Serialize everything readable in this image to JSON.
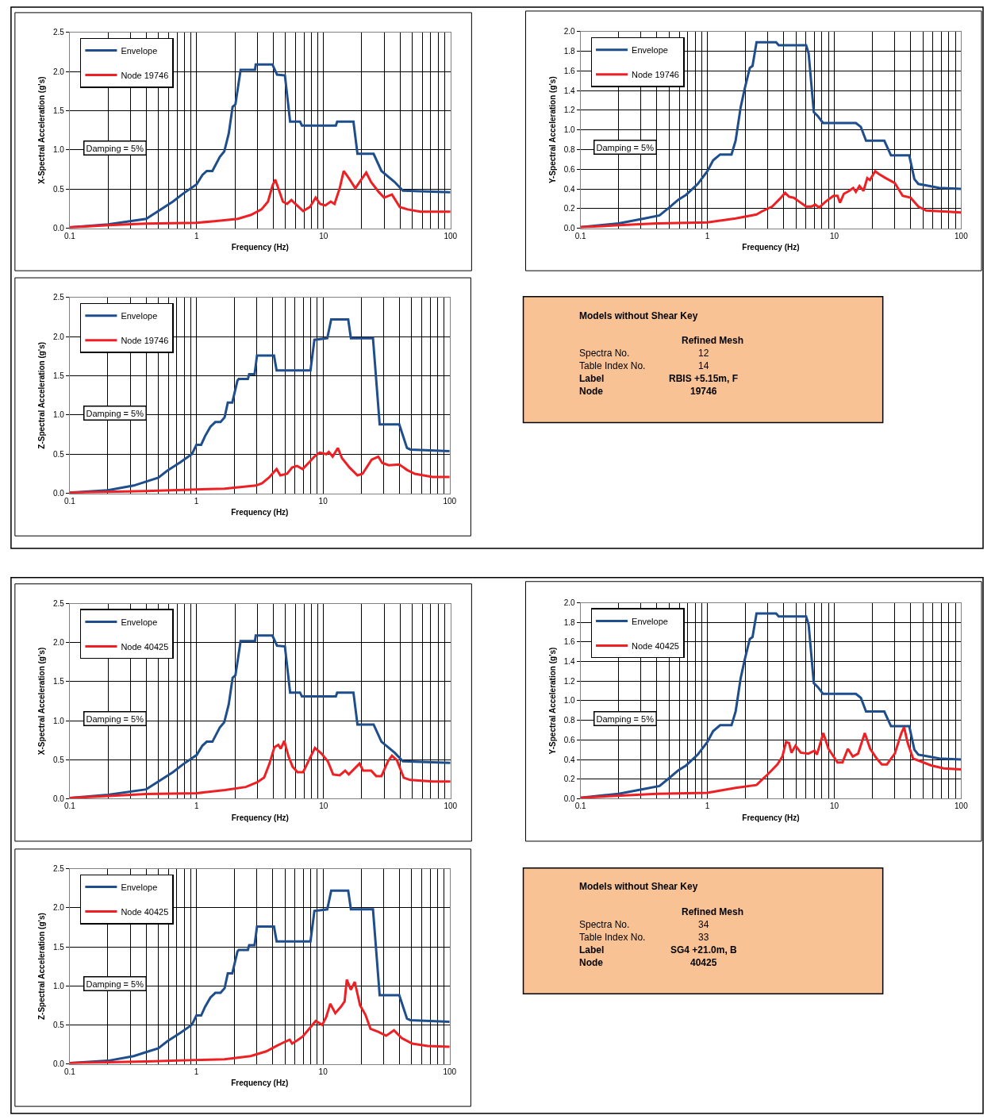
{
  "chart_data": [
    {
      "type": "line",
      "xlabel": "Frequency (Hz)",
      "ylabel": "X-Spectral Acceleration (g's)",
      "log": "x",
      "grid": true,
      "legend": "top left",
      "line_style": "solid",
      "annotations": [
        "Damping = 5%"
      ],
      "xlim": [
        0.1,
        100
      ],
      "xticks": [
        0.1,
        1,
        10,
        100
      ],
      "ylim": [
        0,
        2.5
      ],
      "yticks": [
        {
          "value": 0,
          "label": "0.0"
        },
        {
          "value": 0.5,
          "label": "0.5"
        },
        {
          "value": 1,
          "label": "1.0"
        },
        {
          "value": 1.5,
          "label": "1.5"
        },
        {
          "value": 2,
          "label": "2.0"
        },
        {
          "value": 2.5,
          "label": "2.5"
        }
      ],
      "series": [
        {
          "name": "Envelope",
          "color": "#1f4e8c",
          "x": [
            0.1,
            0.2,
            0.4,
            0.65,
            0.78,
            1.0,
            1.11,
            1.2,
            1.33,
            1.52,
            1.65,
            1.79,
            1.92,
            2.02,
            2.22,
            2.88,
            2.92,
            3.95,
            4.3,
            4.96,
            5.45,
            6.53,
            6.75,
            12.5,
            12.8,
            17.2,
            18.5,
            24.8,
            28.6,
            36.3,
            42.2,
            100
          ],
          "values": [
            0.01,
            0.05,
            0.12,
            0.34,
            0.44,
            0.56,
            0.68,
            0.73,
            0.73,
            0.91,
            0.98,
            1.21,
            1.55,
            1.58,
            2.02,
            2.02,
            2.09,
            2.09,
            1.96,
            1.95,
            1.36,
            1.36,
            1.31,
            1.31,
            1.36,
            1.36,
            0.95,
            0.95,
            0.73,
            0.59,
            0.48,
            0.46
          ]
        },
        {
          "name": "Node 19746",
          "color": "#ee2024",
          "x": [
            0.1,
            0.2,
            0.4,
            1.0,
            1.38,
            2.11,
            2.68,
            3.24,
            3.65,
            3.95,
            4.16,
            4.4,
            4.78,
            5.15,
            5.58,
            6.0,
            6.9,
            7.8,
            8.67,
            9.4,
            10.3,
            11.4,
            12.2,
            13.4,
            14.4,
            15.8,
            17.8,
            19.6,
            21.7,
            23.7,
            27.3,
            30,
            34.6,
            39.9,
            46,
            58,
            100
          ],
          "values": [
            0.01,
            0.04,
            0.06,
            0.07,
            0.09,
            0.12,
            0.17,
            0.24,
            0.34,
            0.54,
            0.62,
            0.51,
            0.34,
            0.31,
            0.36,
            0.31,
            0.22,
            0.27,
            0.39,
            0.31,
            0.29,
            0.34,
            0.31,
            0.51,
            0.73,
            0.64,
            0.51,
            0.61,
            0.71,
            0.59,
            0.46,
            0.39,
            0.43,
            0.27,
            0.24,
            0.21,
            0.21
          ]
        }
      ]
    },
    {
      "type": "line",
      "xlabel": "Frequency (Hz)",
      "ylabel": "Y-Spectral Acceleration (g's)",
      "log": "x",
      "grid": true,
      "legend": "top left",
      "line_style": "solid",
      "annotations": [
        "Damping = 5%"
      ],
      "xlim": [
        0.1,
        100
      ],
      "xticks": [
        0.1,
        1,
        10,
        100
      ],
      "ylim": [
        0,
        2.0
      ],
      "yticks": [
        {
          "value": 0,
          "label": "0.0"
        },
        {
          "value": 0.2,
          "label": "0.2"
        },
        {
          "value": 0.4,
          "label": "0.4"
        },
        {
          "value": 0.6,
          "label": "0.6"
        },
        {
          "value": 0.8,
          "label": "0.8"
        },
        {
          "value": 1,
          "label": "1.0"
        },
        {
          "value": 1.2,
          "label": "1.2"
        },
        {
          "value": 1.4,
          "label": "1.4"
        },
        {
          "value": 1.6,
          "label": "1.6"
        },
        {
          "value": 1.8,
          "label": "1.8"
        },
        {
          "value": 2,
          "label": "2.0"
        }
      ],
      "series": [
        {
          "name": "Envelope",
          "color": "#1f4e8c",
          "x": [
            0.1,
            0.2,
            0.32,
            0.42,
            0.51,
            0.59,
            0.68,
            0.84,
            1.0,
            1.11,
            1.26,
            1.55,
            1.67,
            1.83,
            1.97,
            2.16,
            2.27,
            2.44,
            3.48,
            3.65,
            6.0,
            6.28,
            6.9,
            7.42,
            8.16,
            14.8,
            16.2,
            17.8,
            24.8,
            28,
            39,
            42.8,
            46,
            55.6,
            67.1,
            100
          ],
          "values": [
            0.01,
            0.05,
            0.1,
            0.13,
            0.22,
            0.29,
            0.34,
            0.45,
            0.58,
            0.69,
            0.75,
            0.75,
            0.89,
            1.23,
            1.42,
            1.63,
            1.65,
            1.89,
            1.89,
            1.86,
            1.86,
            1.78,
            1.18,
            1.14,
            1.07,
            1.07,
            1.03,
            0.89,
            0.89,
            0.74,
            0.74,
            0.5,
            0.45,
            0.43,
            0.41,
            0.4
          ]
        },
        {
          "name": "Node 19746",
          "color": "#ee2024",
          "x": [
            0.1,
            0.2,
            0.4,
            1.0,
            1.67,
            2.44,
            2.68,
            3.24,
            3.73,
            4.1,
            4.4,
            4.8,
            5.3,
            6.0,
            6.6,
            7.08,
            7.6,
            8.55,
            9.86,
            10.6,
            11.1,
            11.9,
            13.1,
            14.1,
            14.8,
            15.8,
            17.0,
            18.2,
            19.1,
            21.0,
            22.6,
            25.4,
            30,
            34.6,
            40,
            46,
            53,
            73.8,
            100
          ],
          "values": [
            0.01,
            0.03,
            0.05,
            0.06,
            0.1,
            0.14,
            0.17,
            0.22,
            0.3,
            0.36,
            0.32,
            0.31,
            0.27,
            0.22,
            0.22,
            0.24,
            0.21,
            0.27,
            0.33,
            0.33,
            0.26,
            0.35,
            0.38,
            0.41,
            0.37,
            0.43,
            0.38,
            0.51,
            0.49,
            0.58,
            0.55,
            0.51,
            0.46,
            0.33,
            0.31,
            0.22,
            0.18,
            0.17,
            0.16
          ]
        }
      ]
    },
    {
      "type": "line",
      "xlabel": "Frequency (Hz)",
      "ylabel": "Z-Spectral Acceleration (g's)",
      "log": "x",
      "grid": true,
      "legend": "top left",
      "line_style": "solid",
      "annotations": [
        "Damping = 5%"
      ],
      "xlim": [
        0.1,
        100
      ],
      "xticks": [
        0.1,
        1,
        10,
        100
      ],
      "ylim": [
        0,
        2.5
      ],
      "yticks": [
        {
          "value": 0,
          "label": "0.0"
        },
        {
          "value": 0.5,
          "label": "0.5"
        },
        {
          "value": 1,
          "label": "1.0"
        },
        {
          "value": 1.5,
          "label": "1.5"
        },
        {
          "value": 2,
          "label": "2.0"
        },
        {
          "value": 2.5,
          "label": "2.5"
        }
      ],
      "series": [
        {
          "name": "Envelope",
          "color": "#1f4e8c",
          "x": [
            0.1,
            0.2,
            0.32,
            0.4,
            0.5,
            0.59,
            0.75,
            0.92,
            1.0,
            1.09,
            1.17,
            1.29,
            1.41,
            1.55,
            1.67,
            1.77,
            1.92,
            2.11,
            2.16,
            2.55,
            2.61,
            2.88,
            3.01,
            4.1,
            4.3,
            7.96,
            8.55,
            10.8,
            11.6,
            15.8,
            16.6,
            24.8,
            28,
            40,
            46,
            49,
            100
          ],
          "values": [
            0.01,
            0.04,
            0.1,
            0.15,
            0.2,
            0.29,
            0.4,
            0.5,
            0.62,
            0.62,
            0.73,
            0.85,
            0.91,
            0.91,
            0.97,
            1.16,
            1.16,
            1.44,
            1.46,
            1.46,
            1.52,
            1.52,
            1.76,
            1.76,
            1.57,
            1.57,
            1.96,
            1.98,
            2.22,
            2.22,
            1.98,
            1.98,
            0.88,
            0.88,
            0.58,
            0.56,
            0.54
          ]
        },
        {
          "name": "Node 19746",
          "color": "#ee2024",
          "x": [
            0.1,
            0.4,
            1.0,
            1.67,
            2.95,
            3.3,
            3.73,
            4.3,
            4.6,
            5.2,
            5.7,
            6.24,
            6.9,
            7.8,
            8.55,
            9.4,
            10.6,
            11.1,
            11.9,
            13.1,
            14.1,
            16.2,
            18.7,
            20.5,
            24.2,
            27.3,
            29.3,
            33,
            40,
            46,
            53,
            73,
            100
          ],
          "values": [
            0.01,
            0.03,
            0.05,
            0.06,
            0.1,
            0.13,
            0.2,
            0.31,
            0.23,
            0.25,
            0.33,
            0.35,
            0.31,
            0.4,
            0.47,
            0.52,
            0.5,
            0.53,
            0.47,
            0.58,
            0.45,
            0.33,
            0.23,
            0.25,
            0.43,
            0.47,
            0.39,
            0.36,
            0.37,
            0.3,
            0.25,
            0.21,
            0.21
          ]
        }
      ]
    },
    {
      "type": "other",
      "title": "Models without Shear Key",
      "subtitle": "Refined Mesh",
      "annotations": [
        "Spectra No.",
        "12",
        "Table Index No.",
        "14",
        "Label",
        "RBIS +5.15m, F",
        "Node",
        "19746"
      ]
    },
    {
      "type": "line",
      "xlabel": "Frequency (Hz)",
      "ylabel": "X-Spectral Acceleration (g's)",
      "log": "x",
      "grid": true,
      "legend": "top left",
      "line_style": "solid",
      "annotations": [
        "Damping = 5%"
      ],
      "xlim": [
        0.1,
        100
      ],
      "xticks": [
        0.1,
        1,
        10,
        100
      ],
      "ylim": [
        0,
        2.5
      ],
      "yticks": [
        {
          "value": 0,
          "label": "0.0"
        },
        {
          "value": 0.5,
          "label": "0.5"
        },
        {
          "value": 1,
          "label": "1.0"
        },
        {
          "value": 1.5,
          "label": "1.5"
        },
        {
          "value": 2,
          "label": "2.0"
        },
        {
          "value": 2.5,
          "label": "2.5"
        }
      ],
      "series": [
        {
          "name": "Envelope",
          "color": "#1f4e8c",
          "x": [
            0.1,
            0.2,
            0.4,
            0.65,
            0.78,
            1.0,
            1.11,
            1.2,
            1.33,
            1.52,
            1.65,
            1.79,
            1.92,
            2.02,
            2.22,
            2.88,
            2.92,
            3.95,
            4.3,
            4.96,
            5.45,
            6.53,
            6.75,
            12.5,
            12.8,
            17.2,
            18.5,
            24.8,
            28.6,
            36.3,
            42.2,
            100
          ],
          "values": [
            0.01,
            0.05,
            0.12,
            0.34,
            0.44,
            0.56,
            0.68,
            0.73,
            0.73,
            0.91,
            0.98,
            1.21,
            1.55,
            1.58,
            2.02,
            2.02,
            2.09,
            2.09,
            1.96,
            1.95,
            1.36,
            1.36,
            1.31,
            1.31,
            1.36,
            1.36,
            0.95,
            0.95,
            0.73,
            0.59,
            0.48,
            0.46
          ]
        },
        {
          "name": "Node 40425",
          "color": "#ee2024",
          "x": [
            0.1,
            0.4,
            1.0,
            1.67,
            2.44,
            3.0,
            3.4,
            3.73,
            4.1,
            4.4,
            4.6,
            4.9,
            5.3,
            5.7,
            6.24,
            6.9,
            7.6,
            8.55,
            9.6,
            10.8,
            11.9,
            13.4,
            14.8,
            15.8,
            19.2,
            20.5,
            23.7,
            26,
            28.6,
            32.2,
            34.6,
            37.9,
            42.8,
            48.2,
            73,
            100
          ],
          "values": [
            0.01,
            0.06,
            0.07,
            0.11,
            0.15,
            0.21,
            0.27,
            0.44,
            0.66,
            0.69,
            0.64,
            0.74,
            0.54,
            0.41,
            0.34,
            0.34,
            0.48,
            0.65,
            0.58,
            0.48,
            0.31,
            0.3,
            0.36,
            0.31,
            0.45,
            0.36,
            0.36,
            0.29,
            0.29,
            0.48,
            0.55,
            0.49,
            0.27,
            0.24,
            0.22,
            0.22
          ]
        }
      ]
    },
    {
      "type": "line",
      "xlabel": "Frequency (Hz)",
      "ylabel": "Y-Spectral Acceleration (g's)",
      "log": "x",
      "grid": true,
      "legend": "top left",
      "line_style": "solid",
      "annotations": [
        "Damping = 5%"
      ],
      "xlim": [
        0.1,
        100
      ],
      "xticks": [
        0.1,
        1,
        10,
        100
      ],
      "ylim": [
        0,
        2.0
      ],
      "yticks": [
        {
          "value": 0,
          "label": "0.0"
        },
        {
          "value": 0.2,
          "label": "0.2"
        },
        {
          "value": 0.4,
          "label": "0.4"
        },
        {
          "value": 0.6,
          "label": "0.6"
        },
        {
          "value": 0.8,
          "label": "0.8"
        },
        {
          "value": 1,
          "label": "1.0"
        },
        {
          "value": 1.2,
          "label": "1.2"
        },
        {
          "value": 1.4,
          "label": "1.4"
        },
        {
          "value": 1.6,
          "label": "1.6"
        },
        {
          "value": 1.8,
          "label": "1.8"
        },
        {
          "value": 2,
          "label": "2.0"
        }
      ],
      "series": [
        {
          "name": "Envelope",
          "color": "#1f4e8c",
          "x": [
            0.1,
            0.2,
            0.32,
            0.42,
            0.51,
            0.59,
            0.68,
            0.84,
            1.0,
            1.11,
            1.26,
            1.55,
            1.67,
            1.83,
            1.97,
            2.16,
            2.27,
            2.44,
            3.48,
            3.65,
            6.0,
            6.28,
            6.9,
            7.42,
            8.16,
            14.8,
            16.2,
            17.8,
            24.8,
            28,
            39,
            42.8,
            46,
            55.6,
            67.1,
            100
          ],
          "values": [
            0.01,
            0.05,
            0.1,
            0.13,
            0.22,
            0.29,
            0.34,
            0.45,
            0.58,
            0.69,
            0.75,
            0.75,
            0.89,
            1.23,
            1.42,
            1.63,
            1.65,
            1.89,
            1.89,
            1.86,
            1.86,
            1.78,
            1.18,
            1.14,
            1.07,
            1.07,
            1.03,
            0.89,
            0.89,
            0.74,
            0.74,
            0.5,
            0.45,
            0.43,
            0.41,
            0.4
          ]
        },
        {
          "name": "Node 40425",
          "color": "#ee2024",
          "x": [
            0.1,
            0.4,
            1.0,
            1.67,
            2.44,
            2.68,
            3.0,
            3.56,
            3.9,
            4.17,
            4.4,
            4.6,
            4.95,
            5.45,
            6.24,
            7.0,
            7.3,
            8.2,
            9.0,
            10.6,
            11.6,
            12.8,
            14.0,
            15.4,
            17.4,
            19.2,
            21.6,
            23.7,
            26,
            30,
            33.8,
            35.5,
            37.9,
            41.8,
            48.2,
            58,
            73,
            100
          ],
          "values": [
            0.01,
            0.05,
            0.06,
            0.11,
            0.14,
            0.19,
            0.25,
            0.35,
            0.43,
            0.58,
            0.57,
            0.47,
            0.54,
            0.47,
            0.46,
            0.49,
            0.45,
            0.67,
            0.51,
            0.37,
            0.37,
            0.51,
            0.43,
            0.46,
            0.67,
            0.51,
            0.41,
            0.35,
            0.35,
            0.46,
            0.67,
            0.73,
            0.57,
            0.41,
            0.38,
            0.34,
            0.31,
            0.3
          ]
        }
      ]
    },
    {
      "type": "line",
      "xlabel": "Frequency (Hz)",
      "ylabel": "Z-Spectral Acceleration (g's)",
      "log": "x",
      "grid": true,
      "legend": "top left",
      "line_style": "solid",
      "annotations": [
        "Damping = 5%"
      ],
      "xlim": [
        0.1,
        100
      ],
      "xticks": [
        0.1,
        1,
        10,
        100
      ],
      "ylim": [
        0,
        2.5
      ],
      "yticks": [
        {
          "value": 0,
          "label": "0.0"
        },
        {
          "value": 0.5,
          "label": "0.5"
        },
        {
          "value": 1,
          "label": "1.0"
        },
        {
          "value": 1.5,
          "label": "1.5"
        },
        {
          "value": 2,
          "label": "2.0"
        },
        {
          "value": 2.5,
          "label": "2.5"
        }
      ],
      "series": [
        {
          "name": "Envelope",
          "color": "#1f4e8c",
          "x": [
            0.1,
            0.2,
            0.32,
            0.4,
            0.5,
            0.59,
            0.75,
            0.92,
            1.0,
            1.09,
            1.17,
            1.29,
            1.41,
            1.55,
            1.67,
            1.77,
            1.92,
            2.11,
            2.16,
            2.55,
            2.61,
            2.88,
            3.01,
            4.1,
            4.3,
            7.96,
            8.55,
            10.8,
            11.6,
            15.8,
            16.6,
            24.8,
            28,
            40,
            46,
            49,
            100
          ],
          "values": [
            0.01,
            0.04,
            0.1,
            0.15,
            0.2,
            0.29,
            0.4,
            0.5,
            0.62,
            0.62,
            0.73,
            0.85,
            0.91,
            0.91,
            0.97,
            1.16,
            1.16,
            1.44,
            1.46,
            1.46,
            1.52,
            1.52,
            1.76,
            1.76,
            1.57,
            1.57,
            1.96,
            1.98,
            2.22,
            2.22,
            1.98,
            1.98,
            0.88,
            0.88,
            0.58,
            0.56,
            0.54
          ]
        },
        {
          "name": "Node 40425",
          "color": "#ee2024",
          "x": [
            0.1,
            0.4,
            1.0,
            1.67,
            2.68,
            3.56,
            4.3,
            4.95,
            5.45,
            5.7,
            6.24,
            6.9,
            7.6,
            8.75,
            9.86,
            10.6,
            11.4,
            12.5,
            13.8,
            14.8,
            15.4,
            16.6,
            17.8,
            19.6,
            21.6,
            23.7,
            27.3,
            31.5,
            36.3,
            41.8,
            50.7,
            67,
            100
          ],
          "values": [
            0.01,
            0.03,
            0.05,
            0.06,
            0.1,
            0.16,
            0.23,
            0.28,
            0.31,
            0.26,
            0.3,
            0.35,
            0.43,
            0.55,
            0.5,
            0.6,
            0.77,
            0.65,
            0.73,
            0.8,
            1.08,
            0.95,
            1.05,
            0.75,
            0.63,
            0.45,
            0.41,
            0.36,
            0.43,
            0.33,
            0.26,
            0.23,
            0.22
          ]
        }
      ]
    },
    {
      "type": "other",
      "title": "Models without Shear Key",
      "subtitle": "Refined Mesh",
      "annotations": [
        "Spectra No.",
        "34",
        "Table Index No.",
        "33",
        "Label",
        "SG4 +21.0m, B",
        "Node",
        "40425"
      ]
    }
  ]
}
